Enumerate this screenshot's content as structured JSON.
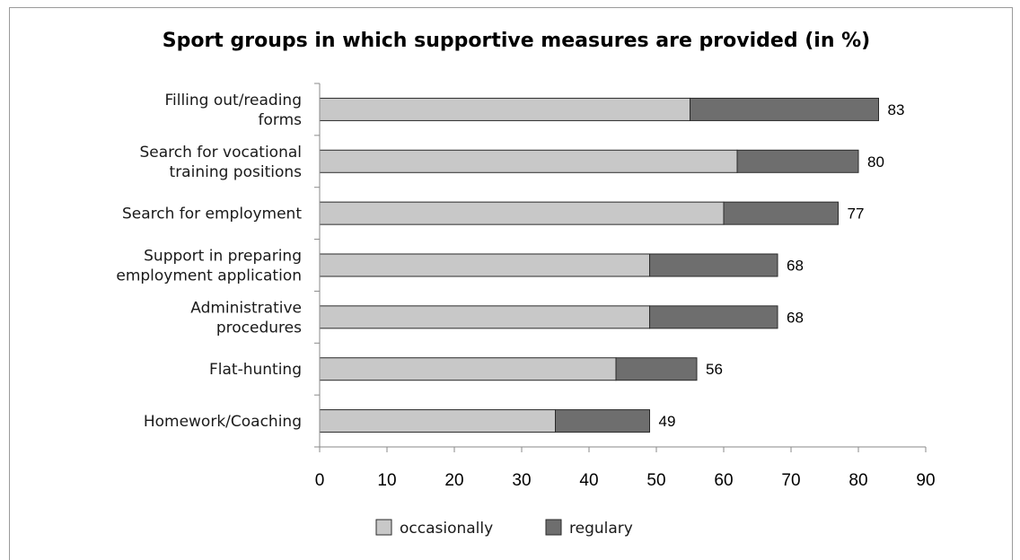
{
  "chart_data": {
    "type": "bar",
    "orientation": "horizontal",
    "stacked": true,
    "title": "Sport groups in which supportive measures are provided (in %)",
    "categories": [
      [
        "Filling out/reading",
        "forms"
      ],
      [
        "Search for vocational",
        "training positions"
      ],
      [
        "Search for employment"
      ],
      [
        "Support in preparing",
        "employment application"
      ],
      [
        "Administrative",
        "procedures"
      ],
      [
        "Flat-hunting"
      ],
      [
        "Homework/Coaching"
      ]
    ],
    "series": [
      {
        "name": "occasionally",
        "color": "#c8c8c8",
        "values": [
          55,
          62,
          60,
          49,
          49,
          44,
          35
        ]
      },
      {
        "name": "regulary",
        "color": "#6e6e6e",
        "values": [
          28,
          18,
          17,
          19,
          19,
          12,
          14
        ]
      }
    ],
    "totals": [
      83,
      80,
      77,
      68,
      68,
      56,
      49
    ],
    "xlim": [
      0,
      90
    ],
    "xticks": [
      0,
      10,
      20,
      30,
      40,
      50,
      60,
      70,
      80,
      90
    ],
    "grid": false,
    "legend_position": "bottom"
  }
}
